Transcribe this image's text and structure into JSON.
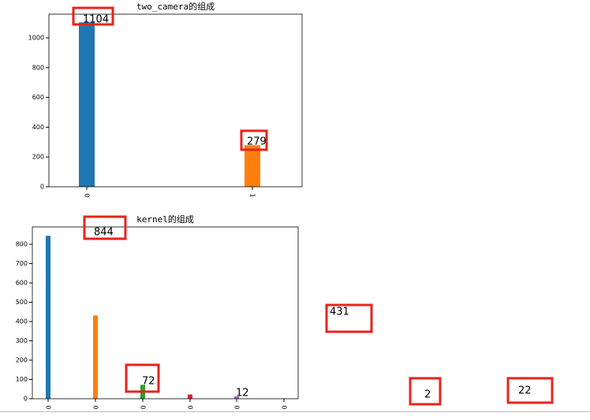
{
  "chart_data": [
    {
      "type": "bar",
      "title": "two_camera的组成",
      "categories": [
        "0",
        "1"
      ],
      "values": [
        1104,
        279
      ],
      "colors": [
        "#1f77b4",
        "#ff7f0e"
      ],
      "ylim": [
        0,
        1159
      ],
      "yticks": [
        0,
        200,
        400,
        600,
        800,
        1000
      ]
    },
    {
      "type": "bar",
      "title": "kernel的组成",
      "categories": [
        "0",
        "0",
        "0",
        "0",
        "0",
        "0"
      ],
      "values": [
        844,
        431,
        72,
        22,
        12,
        2
      ],
      "colors": [
        "#1f77b4",
        "#ff7f0e",
        "#2ca02c",
        "#d62728",
        "#9467bd",
        "#8c564b"
      ],
      "ylim": [
        0,
        890
      ],
      "yticks": [
        0,
        100,
        200,
        300,
        400,
        500,
        600,
        700,
        800
      ]
    }
  ]
}
